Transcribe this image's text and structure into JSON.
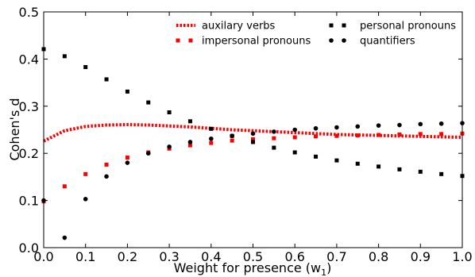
{
  "chart_data": {
    "type": "scatter",
    "xlabel": "Weight for presence (w",
    "xlabel_subscript": "1",
    "xlabel_suffix": ")",
    "ylabel": "Cohen's d",
    "xlim": [
      0.0,
      1.0
    ],
    "ylim": [
      0.0,
      0.5
    ],
    "xticks": [
      "0.0",
      "0.1",
      "0.2",
      "0.3",
      "0.4",
      "0.5",
      "0.6",
      "0.7",
      "0.8",
      "0.9",
      "1.0"
    ],
    "yticks": [
      "0.0",
      "0.1",
      "0.2",
      "0.3",
      "0.4",
      "0.5"
    ],
    "legend_position": "top-right",
    "grid": false,
    "x": [
      0.0,
      0.05,
      0.1,
      0.15,
      0.2,
      0.25,
      0.3,
      0.35,
      0.4,
      0.45,
      0.5,
      0.55,
      0.6,
      0.65,
      0.7,
      0.75,
      0.8,
      0.85,
      0.9,
      0.95,
      1.0
    ],
    "series": [
      {
        "name": "auxilary verbs",
        "style": "dotted-line",
        "color": "#ff0000",
        "values": [
          0.226,
          0.248,
          0.257,
          0.26,
          0.261,
          0.26,
          0.258,
          0.256,
          0.253,
          0.25,
          0.248,
          0.246,
          0.244,
          0.242,
          0.24,
          0.239,
          0.238,
          0.237,
          0.236,
          0.235,
          0.234
        ]
      },
      {
        "name": "impersonal pronouns",
        "style": "square",
        "color": "#ff0000",
        "values": [
          0.098,
          0.13,
          0.156,
          0.176,
          0.191,
          0.202,
          0.21,
          0.217,
          0.222,
          0.227,
          0.23,
          0.232,
          0.234,
          0.236,
          0.237,
          0.238,
          0.239,
          0.24,
          0.241,
          0.241,
          0.242
        ]
      },
      {
        "name": "personal pronouns",
        "style": "square",
        "color": "#000000",
        "values": [
          0.421,
          0.406,
          0.383,
          0.357,
          0.331,
          0.308,
          0.287,
          0.268,
          0.252,
          0.237,
          0.224,
          0.212,
          0.202,
          0.193,
          0.185,
          0.178,
          0.172,
          0.166,
          0.161,
          0.156,
          0.152
        ]
      },
      {
        "name": "quantifiers",
        "style": "circle",
        "color": "#000000",
        "values": [
          0.1,
          0.021,
          0.103,
          0.151,
          0.18,
          0.2,
          0.214,
          0.224,
          0.231,
          0.237,
          0.242,
          0.246,
          0.25,
          0.253,
          0.255,
          0.257,
          0.259,
          0.26,
          0.262,
          0.263,
          0.264
        ]
      }
    ]
  }
}
